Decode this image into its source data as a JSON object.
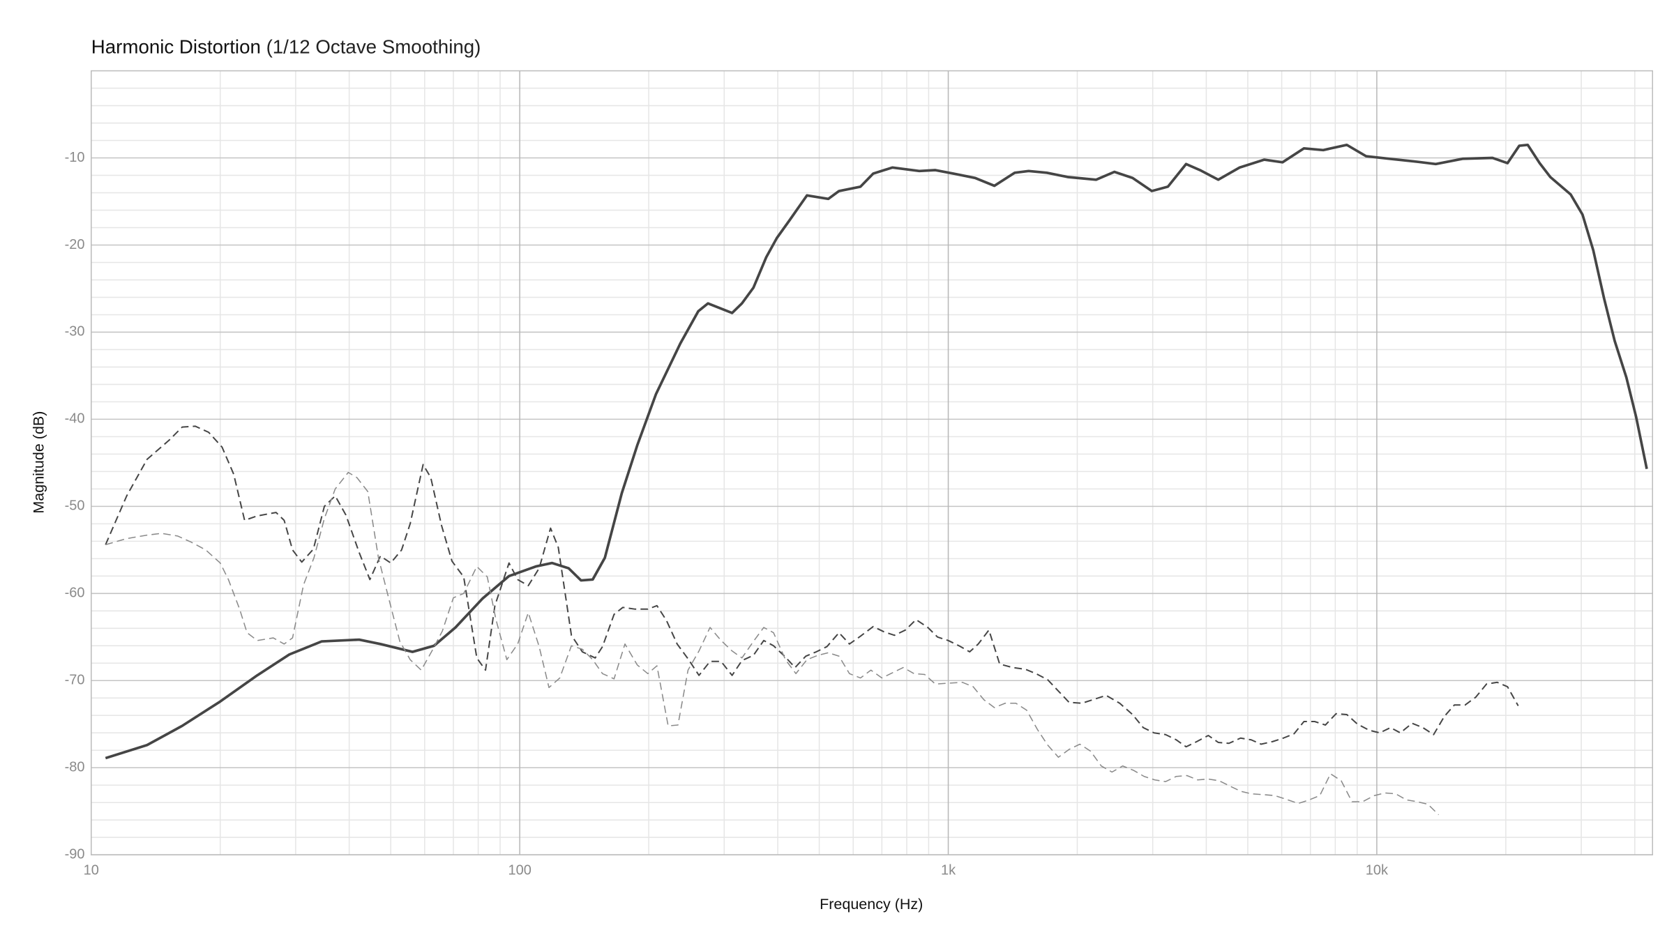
{
  "chart_data": {
    "type": "line",
    "title": "Harmonic Distortion",
    "subtitle": "(1/12 Octave Smoothing)",
    "x_label": "Frequency (Hz)",
    "y_label": "Magnitude (dB)",
    "xscale": "log",
    "xlim": [
      10,
      44000
    ],
    "ylim": [
      -90,
      0
    ],
    "xticks": [
      10,
      100,
      {
        "value": 1000,
        "label": "1k"
      },
      {
        "value": 10000,
        "label": "10k"
      }
    ],
    "yticks": [
      -90,
      -80,
      -70,
      -60,
      -50,
      -40,
      -30,
      -20,
      -10
    ],
    "grid": true,
    "minor_grid": true,
    "series": [
      {
        "color": "#454545",
        "line_style": "solid",
        "x": [
          10.8,
          13.5,
          16.3,
          20,
          24.4,
          29,
          34.5,
          42.2,
          47.3,
          56.2,
          63.1,
          70.8,
          81.8,
          94.4,
          109,
          119,
          130,
          139,
          148,
          158,
          173,
          188,
          208,
          237,
          261,
          275,
          313,
          330,
          351,
          376,
          398,
          427,
          468,
          525,
          556,
          624,
          668,
          741,
          856,
          933,
          1029,
          1155,
          1281,
          1429,
          1540,
          1698,
          1905,
          2213,
          2441,
          2692,
          2985,
          3255,
          3589,
          3868,
          4266,
          4786,
          5464,
          6026,
          6761,
          7499,
          8511,
          9441,
          10715,
          12230,
          13725,
          15849,
          18621,
          20184,
          21500,
          22500,
          23988,
          25410,
          28350,
          30200,
          32000,
          33900,
          35900,
          38230,
          40270,
          42660
        ],
        "values": [
          -78.9,
          -77.4,
          -75.2,
          -72.4,
          -69.4,
          -67,
          -65.5,
          -65.3,
          -65.8,
          -66.7,
          -66,
          -63.9,
          -60.6,
          -58,
          -56.9,
          -56.5,
          -57.1,
          -58.5,
          -58.4,
          -55.9,
          -48.5,
          -43,
          -37.1,
          -31.3,
          -27.6,
          -26.7,
          -27.8,
          -26.7,
          -24.9,
          -21.4,
          -19.2,
          -17.1,
          -14.3,
          -14.7,
          -13.8,
          -13.3,
          -11.8,
          -11.1,
          -11.5,
          -11.4,
          -11.8,
          -12.3,
          -13.2,
          -11.7,
          -11.5,
          -11.7,
          -12.2,
          -12.5,
          -11.6,
          -12.3,
          -13.8,
          -13.3,
          -10.7,
          -11.4,
          -12.5,
          -11.1,
          -10.2,
          -10.5,
          -8.9,
          -9.1,
          -8.5,
          -9.8,
          -10.1,
          -10.4,
          -10.7,
          -10.1,
          -10,
          -10.6,
          -8.6,
          -8.5,
          -10.6,
          -12.2,
          -14.2,
          -16.5,
          -20.6,
          -26.1,
          -31,
          -35.2,
          -39.7,
          -45.7
        ]
      },
      {
        "color": "#454545",
        "line_style": "dashed",
        "x": [
          10.8,
          12.1,
          13.5,
          15.2,
          16.3,
          17.5,
          18.8,
          20.2,
          21.5,
          22.8,
          24.4,
          27,
          28.2,
          29.5,
          31,
          33,
          35,
          37.1,
          39.3,
          42.2,
          44.7,
          47.3,
          50,
          53,
          55.5,
          59.5,
          62,
          65.7,
          69.5,
          74,
          79.4,
          83.2,
          87.5,
          94.4,
          98.9,
          104.7,
          111,
          118,
          123,
          132,
          140,
          150,
          156,
          166,
          174,
          186,
          199,
          209,
          220,
          233,
          247,
          262,
          278,
          295,
          313,
          330,
          351,
          371,
          391,
          415,
          439,
          465,
          492,
          521,
          556,
          588,
          624,
          668,
          708,
          749,
          794,
          841,
          896,
          944,
          1000,
          1059,
          1122,
          1175,
          1244,
          1318,
          1413,
          1513,
          1602,
          1706,
          1807,
          1914,
          2051,
          2173,
          2335,
          2512,
          2692,
          2851,
          3020,
          3214,
          3405,
          3589,
          3802,
          4045,
          4266,
          4519,
          4810,
          5092,
          5370,
          5715,
          6053,
          6412,
          6761,
          7161,
          7586,
          8035,
          8511,
          9016,
          9597,
          10160,
          10765,
          11350,
          12090,
          12810,
          13570,
          14380,
          15170,
          16070,
          17020,
          18030,
          19100,
          20180,
          21380
        ],
        "values": [
          -54.4,
          -48.8,
          -44.6,
          -42.4,
          -40.9,
          -40.8,
          -41.5,
          -43.2,
          -46.3,
          -51.6,
          -51.1,
          -50.7,
          -51.6,
          -55,
          -56.4,
          -54.9,
          -50,
          -48.8,
          -51,
          -55.3,
          -58.4,
          -55.7,
          -56.5,
          -55,
          -52,
          -45.2,
          -46.7,
          -52.2,
          -56.3,
          -58.1,
          -67.4,
          -68.8,
          -61.4,
          -56.5,
          -58.4,
          -59.1,
          -57.1,
          -52.5,
          -54.7,
          -64.8,
          -66.7,
          -67.4,
          -66.1,
          -62.4,
          -61.6,
          -61.8,
          -61.8,
          -61.4,
          -63.1,
          -65.8,
          -67.5,
          -69.4,
          -67.8,
          -67.8,
          -69.4,
          -67.7,
          -67.1,
          -65.4,
          -66,
          -67.2,
          -68.5,
          -67.2,
          -66.7,
          -66.1,
          -64.5,
          -65.8,
          -64.9,
          -63.8,
          -64.4,
          -64.8,
          -64.2,
          -63,
          -63.9,
          -65,
          -65.4,
          -66,
          -66.7,
          -65.8,
          -64.2,
          -68.1,
          -68.5,
          -68.7,
          -69.2,
          -69.9,
          -71.2,
          -72.5,
          -72.6,
          -72.2,
          -71.7,
          -72.6,
          -73.9,
          -75.4,
          -76,
          -76.2,
          -76.8,
          -77.6,
          -77,
          -76.3,
          -77.1,
          -77.2,
          -76.6,
          -76.8,
          -77.3,
          -77,
          -76.6,
          -76.1,
          -74.7,
          -74.7,
          -75.1,
          -73.8,
          -73.9,
          -75,
          -75.7,
          -76,
          -75.4,
          -76,
          -74.9,
          -75.4,
          -76.2,
          -74.1,
          -72.8,
          -72.8,
          -71.9,
          -70.4,
          -70.2,
          -70.7,
          -72.9
        ]
      },
      {
        "color": "#8a8a8a",
        "line_style": "dashed",
        "x": [
          10.8,
          12.1,
          13.5,
          14.6,
          15.9,
          17.1,
          18.5,
          20,
          20.9,
          22.2,
          23.1,
          24.4,
          26.6,
          28.2,
          29.5,
          31.3,
          33.1,
          35,
          37.1,
          39.8,
          41.7,
          44.2,
          46.8,
          49.6,
          52.5,
          55.5,
          58.9,
          62.4,
          66,
          70,
          74,
          79.4,
          84,
          88,
          93.3,
          98.9,
          104.7,
          111,
          117,
          124,
          132,
          140,
          148,
          156,
          166,
          176,
          188,
          199,
          209,
          222,
          234,
          247,
          262,
          278,
          295,
          313,
          330,
          351,
          371,
          391,
          417,
          441,
          468,
          496,
          525,
          556,
          588,
          624,
          660,
          700,
          741,
          785,
          832,
          881,
          933,
          1000,
          1079,
          1143,
          1211,
          1281,
          1358,
          1438,
          1524,
          1614,
          1706,
          1807,
          1914,
          2028,
          2148,
          2275,
          2410,
          2553,
          2705,
          2864,
          3034,
          3214,
          3405,
          3605,
          3819,
          4045,
          4285,
          4538,
          4810,
          5092,
          5464,
          5781,
          6124,
          6561,
          6950,
          7362,
          7798,
          8260,
          8750,
          9270,
          9870,
          10450,
          11070,
          11730,
          12420,
          13160,
          13940
        ],
        "values": [
          -54.4,
          -53.7,
          -53.3,
          -53.1,
          -53.4,
          -54.1,
          -55,
          -56.5,
          -58.4,
          -61.8,
          -64.5,
          -65.4,
          -65.1,
          -65.8,
          -65.1,
          -59,
          -55.9,
          -51.4,
          -48,
          -46.1,
          -46.7,
          -48.3,
          -55.9,
          -60.8,
          -65.5,
          -67.6,
          -68.8,
          -66.6,
          -64.3,
          -60.5,
          -60,
          -56.9,
          -58.1,
          -63,
          -67.6,
          -65.8,
          -62.2,
          -66.1,
          -70.8,
          -69.7,
          -66,
          -66.4,
          -67.6,
          -69.2,
          -69.8,
          -65.8,
          -68.2,
          -69.2,
          -68.3,
          -75.2,
          -75.1,
          -68.8,
          -66.6,
          -63.9,
          -65.4,
          -66.6,
          -67.4,
          -65.5,
          -63.9,
          -64.5,
          -67.6,
          -69.2,
          -67.6,
          -67.1,
          -66.8,
          -67.2,
          -69.2,
          -69.7,
          -68.8,
          -69.7,
          -69.1,
          -68.5,
          -69.2,
          -69.3,
          -70.4,
          -70.3,
          -70.2,
          -70.7,
          -72.2,
          -73.1,
          -72.6,
          -72.6,
          -73.4,
          -75.6,
          -77.4,
          -78.8,
          -77.9,
          -77.3,
          -78.1,
          -79.8,
          -80.5,
          -79.8,
          -80.3,
          -81,
          -81.4,
          -81.6,
          -81,
          -80.9,
          -81.4,
          -81.3,
          -81.5,
          -82.1,
          -82.7,
          -83,
          -83.1,
          -83.2,
          -83.6,
          -84.1,
          -83.7,
          -83.2,
          -80.7,
          -81.5,
          -83.9,
          -83.9,
          -83.2,
          -82.9,
          -83,
          -83.7,
          -83.9,
          -84.2,
          -85.4
        ]
      }
    ]
  }
}
